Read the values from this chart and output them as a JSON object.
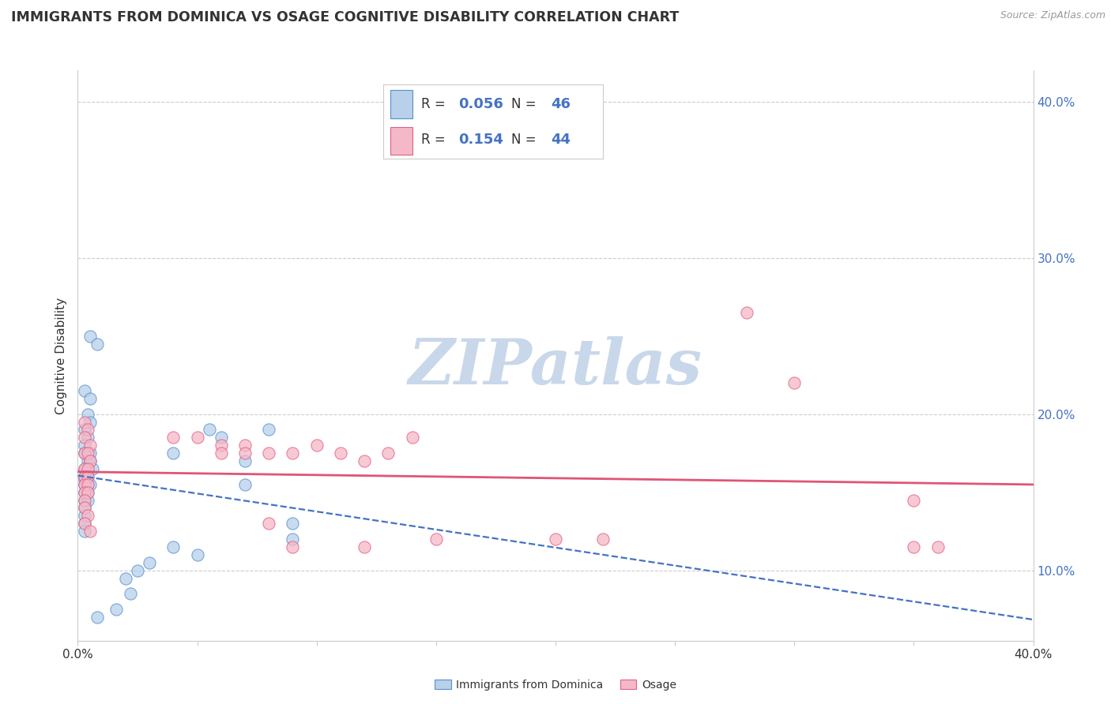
{
  "title": "IMMIGRANTS FROM DOMINICA VS OSAGE COGNITIVE DISABILITY CORRELATION CHART",
  "source": "Source: ZipAtlas.com",
  "ylabel": "Cognitive Disability",
  "legend_blue_r": "0.056",
  "legend_blue_n": "46",
  "legend_pink_r": "0.154",
  "legend_pink_n": "44",
  "legend_label_blue": "Immigrants from Dominica",
  "legend_label_pink": "Osage",
  "blue_fill": "#b8d0ea",
  "pink_fill": "#f5b8c8",
  "blue_edge": "#5590cc",
  "pink_edge": "#e06080",
  "blue_line": "#4472c4",
  "pink_line": "#e05575",
  "text_color": "#333333",
  "axis_color": "#4472c4",
  "blue_scatter": [
    [
      0.005,
      0.25
    ],
    [
      0.008,
      0.245
    ],
    [
      0.003,
      0.215
    ],
    [
      0.005,
      0.21
    ],
    [
      0.004,
      0.2
    ],
    [
      0.005,
      0.195
    ],
    [
      0.003,
      0.19
    ],
    [
      0.004,
      0.185
    ],
    [
      0.003,
      0.18
    ],
    [
      0.005,
      0.175
    ],
    [
      0.003,
      0.175
    ],
    [
      0.004,
      0.17
    ],
    [
      0.005,
      0.17
    ],
    [
      0.003,
      0.165
    ],
    [
      0.004,
      0.165
    ],
    [
      0.006,
      0.165
    ],
    [
      0.003,
      0.16
    ],
    [
      0.004,
      0.16
    ],
    [
      0.003,
      0.158
    ],
    [
      0.004,
      0.155
    ],
    [
      0.003,
      0.155
    ],
    [
      0.005,
      0.155
    ],
    [
      0.003,
      0.15
    ],
    [
      0.004,
      0.15
    ],
    [
      0.003,
      0.145
    ],
    [
      0.004,
      0.145
    ],
    [
      0.003,
      0.14
    ],
    [
      0.003,
      0.135
    ],
    [
      0.003,
      0.13
    ],
    [
      0.003,
      0.125
    ],
    [
      0.04,
      0.175
    ],
    [
      0.055,
      0.19
    ],
    [
      0.06,
      0.185
    ],
    [
      0.07,
      0.17
    ],
    [
      0.07,
      0.155
    ],
    [
      0.08,
      0.19
    ],
    [
      0.09,
      0.13
    ],
    [
      0.09,
      0.12
    ],
    [
      0.05,
      0.11
    ],
    [
      0.04,
      0.115
    ],
    [
      0.03,
      0.105
    ],
    [
      0.025,
      0.1
    ],
    [
      0.02,
      0.095
    ],
    [
      0.022,
      0.085
    ],
    [
      0.016,
      0.075
    ],
    [
      0.008,
      0.07
    ]
  ],
  "pink_scatter": [
    [
      0.003,
      0.195
    ],
    [
      0.004,
      0.19
    ],
    [
      0.003,
      0.185
    ],
    [
      0.005,
      0.18
    ],
    [
      0.003,
      0.175
    ],
    [
      0.004,
      0.175
    ],
    [
      0.005,
      0.17
    ],
    [
      0.003,
      0.165
    ],
    [
      0.004,
      0.165
    ],
    [
      0.003,
      0.16
    ],
    [
      0.004,
      0.16
    ],
    [
      0.003,
      0.155
    ],
    [
      0.004,
      0.155
    ],
    [
      0.003,
      0.15
    ],
    [
      0.004,
      0.15
    ],
    [
      0.003,
      0.145
    ],
    [
      0.003,
      0.14
    ],
    [
      0.004,
      0.135
    ],
    [
      0.003,
      0.13
    ],
    [
      0.005,
      0.125
    ],
    [
      0.04,
      0.185
    ],
    [
      0.05,
      0.185
    ],
    [
      0.06,
      0.18
    ],
    [
      0.06,
      0.175
    ],
    [
      0.07,
      0.18
    ],
    [
      0.07,
      0.175
    ],
    [
      0.08,
      0.175
    ],
    [
      0.09,
      0.175
    ],
    [
      0.1,
      0.18
    ],
    [
      0.11,
      0.175
    ],
    [
      0.12,
      0.17
    ],
    [
      0.13,
      0.175
    ],
    [
      0.14,
      0.185
    ],
    [
      0.28,
      0.265
    ],
    [
      0.3,
      0.22
    ],
    [
      0.35,
      0.145
    ],
    [
      0.36,
      0.115
    ],
    [
      0.2,
      0.12
    ],
    [
      0.22,
      0.12
    ],
    [
      0.15,
      0.12
    ],
    [
      0.12,
      0.115
    ],
    [
      0.08,
      0.13
    ],
    [
      0.09,
      0.115
    ],
    [
      0.35,
      0.115
    ]
  ],
  "xlim": [
    0.0,
    0.4
  ],
  "ylim": [
    0.055,
    0.42
  ],
  "yticks": [
    0.1,
    0.2,
    0.3,
    0.4
  ],
  "watermark_text": "ZIPatlas",
  "watermark_color": "#c8d8ea"
}
